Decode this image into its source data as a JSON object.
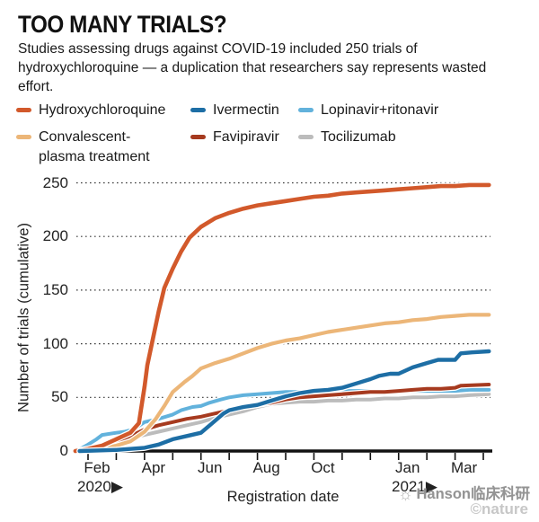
{
  "header": {
    "title": "TOO MANY TRIALS?",
    "subtitle": "Studies assessing drugs against COVID-19 included 250 trials of hydroxychloroquine — a duplication that researchers say represents wasted effort."
  },
  "legend": {
    "items": [
      {
        "line1": "Hydroxychloroquine",
        "line2": "",
        "color": "#d2592b"
      },
      {
        "line1": "Ivermectin",
        "line2": "",
        "color": "#1d6ea5"
      },
      {
        "line1": "Lopinavir+ritonavir",
        "line2": "",
        "color": "#62b2dc"
      },
      {
        "line1": "Convalescent-",
        "line2": "plasma treatment",
        "color": "#ecb678"
      },
      {
        "line1": "Favipiravir",
        "line2": "",
        "color": "#a63a1f"
      },
      {
        "line1": "Tocilizumab",
        "line2": "",
        "color": "#bcbcbc"
      }
    ]
  },
  "chart_data": {
    "type": "line",
    "title": "TOO MANY TRIALS?",
    "xlabel": "Registration date",
    "ylabel": "Number of trials (cumulative)",
    "ylim": [
      0,
      250
    ],
    "yticks": [
      0,
      50,
      100,
      150,
      200,
      250
    ],
    "grid": "dotted-horizontal",
    "legend_position": "top",
    "x_unit": "months since Feb 2020",
    "x_minor_ticks_months": [
      0,
      1,
      2,
      3,
      4,
      5,
      6,
      7,
      8,
      9,
      10,
      11,
      12,
      13,
      14
    ],
    "x_tick_labels": [
      {
        "label": "Feb",
        "month": 0
      },
      {
        "label": "Apr",
        "month": 2
      },
      {
        "label": "Jun",
        "month": 4
      },
      {
        "label": "Aug",
        "month": 6
      },
      {
        "label": "Oct",
        "month": 8
      },
      {
        "label": "Jan",
        "month": 11
      },
      {
        "label": "Mar",
        "month": 13
      }
    ],
    "year_markers": [
      {
        "label": "2020▶",
        "month": 0
      },
      {
        "label": "2021▶",
        "month": 11
      }
    ],
    "series": [
      {
        "name": "Tocilizumab",
        "color": "#bcbcbc",
        "width": 4,
        "points": [
          [
            0.4,
            0
          ],
          [
            0.7,
            4
          ],
          [
            1,
            7
          ],
          [
            1.5,
            12
          ],
          [
            2,
            15
          ],
          [
            2.5,
            18
          ],
          [
            3,
            21
          ],
          [
            3.5,
            24
          ],
          [
            4,
            27
          ],
          [
            4.5,
            31
          ],
          [
            5,
            34
          ],
          [
            5.5,
            37
          ],
          [
            6,
            41
          ],
          [
            6.5,
            44
          ],
          [
            7,
            45
          ],
          [
            7.5,
            46
          ],
          [
            8,
            46
          ],
          [
            8.5,
            47
          ],
          [
            9,
            47
          ],
          [
            9.5,
            48
          ],
          [
            10,
            48
          ],
          [
            10.5,
            49
          ],
          [
            11,
            49
          ],
          [
            11.5,
            50
          ],
          [
            12,
            50
          ],
          [
            12.5,
            51
          ],
          [
            13,
            51
          ],
          [
            13.5,
            52
          ],
          [
            14.2,
            53
          ]
        ]
      },
      {
        "name": "Lopinavir+ritonavir",
        "color": "#62b2dc",
        "width": 4,
        "points": [
          [
            -0.45,
            0
          ],
          [
            -0.2,
            3
          ],
          [
            0,
            6
          ],
          [
            0.3,
            11
          ],
          [
            0.5,
            15
          ],
          [
            1,
            17
          ],
          [
            1.3,
            18
          ],
          [
            1.6,
            20
          ],
          [
            2,
            27
          ],
          [
            2.5,
            30
          ],
          [
            3,
            34
          ],
          [
            3.3,
            38
          ],
          [
            3.7,
            41
          ],
          [
            4,
            42
          ],
          [
            4.3,
            45
          ],
          [
            4.7,
            48
          ],
          [
            5,
            50
          ],
          [
            5.5,
            52
          ],
          [
            6,
            53
          ],
          [
            6.5,
            54
          ],
          [
            7,
            55
          ],
          [
            7.5,
            55
          ],
          [
            8,
            56
          ],
          [
            9,
            56
          ],
          [
            10,
            56
          ],
          [
            11,
            56
          ],
          [
            12,
            56
          ],
          [
            13,
            56
          ],
          [
            13.5,
            57
          ],
          [
            14.2,
            57
          ]
        ]
      },
      {
        "name": "Favipiravir",
        "color": "#a63a1f",
        "width": 4,
        "points": [
          [
            0.3,
            0
          ],
          [
            0.6,
            4
          ],
          [
            1,
            9
          ],
          [
            1.5,
            14
          ],
          [
            2,
            20
          ],
          [
            2.5,
            24
          ],
          [
            3,
            27
          ],
          [
            3.5,
            30
          ],
          [
            4,
            32
          ],
          [
            4.5,
            35
          ],
          [
            5,
            38
          ],
          [
            5.5,
            41
          ],
          [
            6,
            43
          ],
          [
            6.5,
            45
          ],
          [
            7,
            48
          ],
          [
            7.5,
            50
          ],
          [
            8,
            51
          ],
          [
            8.5,
            52
          ],
          [
            9,
            53
          ],
          [
            9.5,
            54
          ],
          [
            10,
            55
          ],
          [
            10.5,
            55
          ],
          [
            11,
            56
          ],
          [
            11.5,
            57
          ],
          [
            12,
            58
          ],
          [
            12.5,
            58
          ],
          [
            13,
            59
          ],
          [
            13.2,
            61
          ],
          [
            14.2,
            62
          ]
        ]
      },
      {
        "name": "Convalescent-plasma treatment",
        "color": "#ecb678",
        "width": 4.2,
        "points": [
          [
            -0.2,
            0
          ],
          [
            0.5,
            2
          ],
          [
            1,
            5
          ],
          [
            1.5,
            9
          ],
          [
            2,
            18
          ],
          [
            2.4,
            30
          ],
          [
            2.7,
            42
          ],
          [
            3,
            55
          ],
          [
            3.4,
            64
          ],
          [
            3.7,
            70
          ],
          [
            4,
            77
          ],
          [
            4.5,
            82
          ],
          [
            5,
            86
          ],
          [
            5.5,
            91
          ],
          [
            6,
            96
          ],
          [
            6.5,
            100
          ],
          [
            7,
            103
          ],
          [
            7.5,
            105
          ],
          [
            8,
            108
          ],
          [
            8.5,
            111
          ],
          [
            9,
            113
          ],
          [
            9.5,
            115
          ],
          [
            10,
            117
          ],
          [
            10.5,
            119
          ],
          [
            11,
            120
          ],
          [
            11.5,
            122
          ],
          [
            12,
            123
          ],
          [
            12.5,
            125
          ],
          [
            13,
            126
          ],
          [
            13.5,
            127
          ],
          [
            14.2,
            127
          ]
        ]
      },
      {
        "name": "Hydroxychloroquine",
        "color": "#d2592b",
        "width": 4.6,
        "points": [
          [
            -0.45,
            0
          ],
          [
            0,
            2
          ],
          [
            0.5,
            5
          ],
          [
            1,
            11
          ],
          [
            1.5,
            17
          ],
          [
            1.8,
            26
          ],
          [
            2,
            60
          ],
          [
            2.1,
            80
          ],
          [
            2.3,
            105
          ],
          [
            2.5,
            130
          ],
          [
            2.7,
            152
          ],
          [
            3,
            170
          ],
          [
            3.3,
            186
          ],
          [
            3.6,
            199
          ],
          [
            4,
            209
          ],
          [
            4.5,
            217
          ],
          [
            5,
            222
          ],
          [
            5.5,
            226
          ],
          [
            6,
            229
          ],
          [
            6.5,
            231
          ],
          [
            7,
            233
          ],
          [
            7.5,
            235
          ],
          [
            8,
            237
          ],
          [
            8.5,
            238
          ],
          [
            9,
            240
          ],
          [
            9.5,
            241
          ],
          [
            10,
            242
          ],
          [
            10.5,
            243
          ],
          [
            11,
            244
          ],
          [
            11.5,
            245
          ],
          [
            12,
            246
          ],
          [
            12.5,
            247
          ],
          [
            13,
            247
          ],
          [
            13.5,
            248
          ],
          [
            14.2,
            248
          ]
        ]
      },
      {
        "name": "Ivermectin",
        "color": "#1d6ea5",
        "width": 4.4,
        "points": [
          [
            -0.3,
            0
          ],
          [
            1,
            1
          ],
          [
            2,
            3
          ],
          [
            2.5,
            6
          ],
          [
            3,
            11
          ],
          [
            3.5,
            14
          ],
          [
            4,
            17
          ],
          [
            4.4,
            26
          ],
          [
            4.8,
            35
          ],
          [
            5,
            38
          ],
          [
            5.5,
            41
          ],
          [
            6,
            43
          ],
          [
            6.5,
            47
          ],
          [
            7,
            51
          ],
          [
            7.5,
            54
          ],
          [
            8,
            56
          ],
          [
            8.5,
            57
          ],
          [
            9,
            59
          ],
          [
            9.5,
            63
          ],
          [
            10,
            67
          ],
          [
            10.3,
            70
          ],
          [
            10.7,
            72
          ],
          [
            11,
            72
          ],
          [
            11.5,
            78
          ],
          [
            12,
            82
          ],
          [
            12.4,
            85
          ],
          [
            13,
            85
          ],
          [
            13.2,
            91
          ],
          [
            13.6,
            92
          ],
          [
            14.2,
            93
          ]
        ]
      }
    ]
  },
  "watermark": {
    "brand": "Hanson临床科研",
    "credit": "©nature"
  }
}
